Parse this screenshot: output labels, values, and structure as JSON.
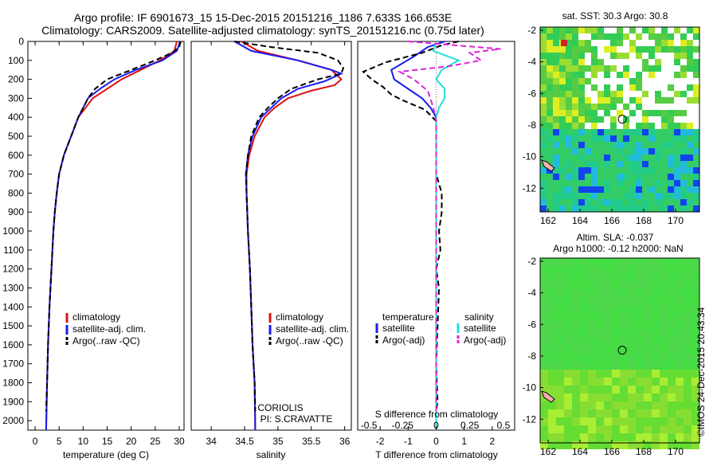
{
  "title_line1": "Argo profile: IF 6901673_15 15-Dec-2015 20151216_1186 7.633S 166.653E",
  "title_line2": "Climatology: CARS2009. Satellite-adjusted climatology: synTS_20151216.nc (0.75d later)",
  "watermark": "©IMOS 24-Dec-2015 20:43:34",
  "colors": {
    "climatology": "#dd1111",
    "satellite": "#1a1aee",
    "argo": "#000000",
    "cyan": "#22dddd",
    "magenta": "#dd22dd"
  },
  "chart_data": [
    {
      "type": "line",
      "id": "temperature",
      "xlabel": "temperature (deg C)",
      "ylabel": "",
      "xlim": [
        -1.5,
        31
      ],
      "ylim": [
        2050,
        0
      ],
      "xticks": [
        0,
        5,
        10,
        15,
        20,
        25,
        30
      ],
      "yticks": [
        0,
        100,
        200,
        300,
        400,
        500,
        600,
        700,
        800,
        900,
        1000,
        1100,
        1200,
        1300,
        1400,
        1500,
        1600,
        1700,
        1800,
        1900,
        2000
      ],
      "legend": [
        "climatology",
        "satellite-adj. clim.",
        "Argo(..raw -QC)"
      ],
      "series": [
        {
          "name": "climatology",
          "style": "solid",
          "color": "#dd1111",
          "points": [
            [
              29.5,
              0
            ],
            [
              29,
              50
            ],
            [
              26,
              100
            ],
            [
              22,
              150
            ],
            [
              18,
              200
            ],
            [
              15,
              250
            ],
            [
              12,
              300
            ],
            [
              10.5,
              350
            ],
            [
              9,
              400
            ],
            [
              7.5,
              500
            ],
            [
              6,
              600
            ],
            [
              5,
              700
            ],
            [
              4.5,
              800
            ],
            [
              4.1,
              900
            ],
            [
              3.8,
              1000
            ],
            [
              3.4,
              1200
            ],
            [
              3,
              1400
            ],
            [
              2.7,
              1600
            ],
            [
              2.5,
              1800
            ],
            [
              2.3,
              2050
            ]
          ]
        },
        {
          "name": "satellite-adj. clim.",
          "style": "solid",
          "color": "#1a1aee",
          "points": [
            [
              30.2,
              0
            ],
            [
              29.5,
              50
            ],
            [
              26.5,
              100
            ],
            [
              21,
              150
            ],
            [
              16.5,
              200
            ],
            [
              13.5,
              250
            ],
            [
              11,
              300
            ],
            [
              10,
              350
            ],
            [
              9,
              400
            ],
            [
              7.5,
              500
            ],
            [
              6,
              600
            ],
            [
              5,
              700
            ],
            [
              4.5,
              800
            ],
            [
              4.1,
              900
            ],
            [
              3.8,
              1000
            ],
            [
              3.4,
              1200
            ],
            [
              3,
              1400
            ],
            [
              2.7,
              1600
            ],
            [
              2.5,
              1800
            ],
            [
              2.3,
              2050
            ]
          ]
        },
        {
          "name": "Argo(..raw -QC)",
          "style": "dashed",
          "color": "#000000",
          "points": [
            [
              30.3,
              0
            ],
            [
              30,
              30
            ],
            [
              28.5,
              60
            ],
            [
              25,
              100
            ],
            [
              20,
              150
            ],
            [
              15,
              200
            ],
            [
              12.5,
              250
            ],
            [
              11,
              300
            ],
            [
              10,
              350
            ],
            [
              9,
              400
            ],
            [
              7.5,
              500
            ],
            [
              6,
              600
            ],
            [
              5,
              700
            ],
            [
              4.5,
              800
            ],
            [
              4.1,
              900
            ],
            [
              3.8,
              1000
            ],
            [
              3.4,
              1200
            ],
            [
              3,
              1400
            ],
            [
              2.7,
              1600
            ],
            [
              2.5,
              1800
            ],
            [
              2.3,
              1950
            ]
          ]
        }
      ],
      "annotation": []
    },
    {
      "type": "line",
      "id": "salinity",
      "xlabel": "salinity",
      "ylabel": "",
      "xlim": [
        33.7,
        36.1
      ],
      "ylim": [
        2050,
        0
      ],
      "xticks": [
        34,
        34.5,
        35,
        35.5,
        36
      ],
      "yticks": [],
      "legend": [
        "climatology",
        "satellite-adj. clim.",
        "Argo(..raw -QC)"
      ],
      "series": [
        {
          "name": "climatology",
          "style": "solid",
          "color": "#dd1111",
          "points": [
            [
              34.45,
              0
            ],
            [
              34.7,
              50
            ],
            [
              35.3,
              100
            ],
            [
              35.8,
              150
            ],
            [
              35.95,
              200
            ],
            [
              35.85,
              230
            ],
            [
              35.5,
              260
            ],
            [
              35.15,
              300
            ],
            [
              34.95,
              350
            ],
            [
              34.8,
              400
            ],
            [
              34.65,
              500
            ],
            [
              34.57,
              600
            ],
            [
              34.53,
              700
            ],
            [
              34.53,
              800
            ],
            [
              34.55,
              1000
            ],
            [
              34.58,
              1200
            ],
            [
              34.6,
              1400
            ],
            [
              34.62,
              1600
            ],
            [
              34.65,
              1800
            ],
            [
              34.66,
              2050
            ]
          ]
        },
        {
          "name": "satellite-adj. clim.",
          "style": "solid",
          "color": "#1a1aee",
          "points": [
            [
              34.35,
              0
            ],
            [
              34.6,
              50
            ],
            [
              35.3,
              100
            ],
            [
              35.8,
              150
            ],
            [
              35.95,
              170
            ],
            [
              35.7,
              210
            ],
            [
              35.3,
              250
            ],
            [
              35.05,
              300
            ],
            [
              34.9,
              350
            ],
            [
              34.75,
              400
            ],
            [
              34.62,
              500
            ],
            [
              34.55,
              600
            ],
            [
              34.52,
              700
            ],
            [
              34.53,
              800
            ],
            [
              34.55,
              1000
            ],
            [
              34.58,
              1200
            ],
            [
              34.6,
              1400
            ],
            [
              34.62,
              1600
            ],
            [
              34.65,
              1800
            ],
            [
              34.66,
              2050
            ]
          ]
        },
        {
          "name": "Argo(..raw -QC)",
          "style": "dashed",
          "color": "#000000",
          "points": [
            [
              34.35,
              0
            ],
            [
              34.9,
              30
            ],
            [
              35.6,
              60
            ],
            [
              35.9,
              100
            ],
            [
              35.98,
              140
            ],
            [
              35.95,
              170
            ],
            [
              35.6,
              200
            ],
            [
              35.2,
              250
            ],
            [
              35,
              300
            ],
            [
              34.85,
              350
            ],
            [
              34.72,
              400
            ],
            [
              34.6,
              500
            ],
            [
              34.55,
              600
            ],
            [
              34.52,
              700
            ],
            [
              34.53,
              800
            ],
            [
              34.55,
              1000
            ],
            [
              34.58,
              1200
            ],
            [
              34.6,
              1400
            ],
            [
              34.62,
              1600
            ],
            [
              34.65,
              1800
            ],
            [
              34.66,
              1950
            ]
          ]
        }
      ],
      "annotation": [
        "CORIOLIS",
        "PI: S.CRAVATTE"
      ]
    },
    {
      "type": "line",
      "id": "difference",
      "xlabel": "T difference from climatology",
      "xlabel_top": "S difference from climatology",
      "xlim": [
        -2.8,
        2.8
      ],
      "ylim": [
        2050,
        0
      ],
      "xticks": [
        -2,
        -1,
        0,
        1,
        2
      ],
      "xticks_s": [
        -0.5,
        -0.25,
        0,
        0.25,
        0.5
      ],
      "legend_temperature_title": "temperature",
      "legend_salinity_title": "salinity",
      "legend_temperature": [
        "satellite",
        "Argo(-adj)"
      ],
      "legend_salinity": [
        "satellite",
        "Argo(-adj)"
      ],
      "series": [
        {
          "name": "satellite",
          "group": "temperature",
          "style": "solid",
          "color": "#1a1aee",
          "points": [
            [
              0.3,
              0
            ],
            [
              -0.3,
              30
            ],
            [
              -0.8,
              80
            ],
            [
              -1.6,
              150
            ],
            [
              -1.5,
              200
            ],
            [
              -1,
              250
            ],
            [
              -0.5,
              300
            ],
            [
              -0.2,
              350
            ],
            [
              0,
              400
            ],
            [
              0,
              2050
            ]
          ]
        },
        {
          "name": "Argo(-adj)",
          "group": "temperature",
          "style": "dashed",
          "color": "#000000",
          "points": [
            [
              0.8,
              0
            ],
            [
              0.2,
              20
            ],
            [
              -0.5,
              60
            ],
            [
              -1.8,
              110
            ],
            [
              -2.6,
              160
            ],
            [
              -2.3,
              200
            ],
            [
              -1.9,
              240
            ],
            [
              -1.6,
              280
            ],
            [
              -1.2,
              310
            ],
            [
              -0.4,
              360
            ],
            [
              0,
              420
            ],
            [
              0,
              700
            ],
            [
              0.2,
              800
            ],
            [
              0.2,
              900
            ],
            [
              0.1,
              1000
            ],
            [
              0.15,
              1100
            ],
            [
              0,
              1200
            ],
            [
              0.1,
              1300
            ],
            [
              0.05,
              1500
            ],
            [
              0,
              1700
            ],
            [
              0.05,
              1900
            ],
            [
              0,
              1950
            ]
          ]
        },
        {
          "name": "satellite",
          "group": "salinity",
          "style": "solid",
          "color": "#22dddd",
          "points": [
            [
              0,
              0
            ],
            [
              -0.1,
              50
            ],
            [
              0.8,
              100
            ],
            [
              0.2,
              150
            ],
            [
              0,
              200
            ],
            [
              0.3,
              250
            ],
            [
              0.3,
              300
            ],
            [
              0.1,
              350
            ],
            [
              0,
              400
            ],
            [
              0,
              2050
            ]
          ]
        },
        {
          "name": "Argo(-adj)",
          "group": "salinity",
          "style": "dashed",
          "color": "#dd22dd",
          "points": [
            [
              -1,
              0
            ],
            [
              2.3,
              40
            ],
            [
              1.2,
              60
            ],
            [
              1.6,
              100
            ],
            [
              0.5,
              130
            ],
            [
              -1.3,
              160
            ],
            [
              -0.8,
              200
            ],
            [
              -0.3,
              260
            ],
            [
              -0.1,
              350
            ],
            [
              0,
              420
            ],
            [
              0,
              1950
            ]
          ]
        }
      ],
      "annotation": []
    },
    {
      "type": "heatmap",
      "id": "sst_map",
      "title": "sat. SST: 30.3 Argo: 30.8",
      "xlim": [
        161.5,
        171.5
      ],
      "ylim": [
        -13.5,
        -1.8
      ],
      "xticks": [
        162,
        164,
        166,
        168,
        170
      ],
      "yticks": [
        -2,
        -4,
        -6,
        -8,
        -10,
        -12
      ],
      "marker": [
        166.653,
        -7.633
      ]
    },
    {
      "type": "heatmap",
      "id": "sla_map",
      "title": "Altim. SLA: -0.037",
      "title2": "Argo h1000: -0.12 h2000: NaN",
      "xlim": [
        161.5,
        171.5
      ],
      "ylim": [
        -13.5,
        -1.8
      ],
      "xticks": [
        162,
        164,
        166,
        168,
        170
      ],
      "yticks": [
        -2,
        -4,
        -6,
        -8,
        -10,
        -12
      ],
      "marker": [
        166.653,
        -7.633
      ]
    }
  ]
}
